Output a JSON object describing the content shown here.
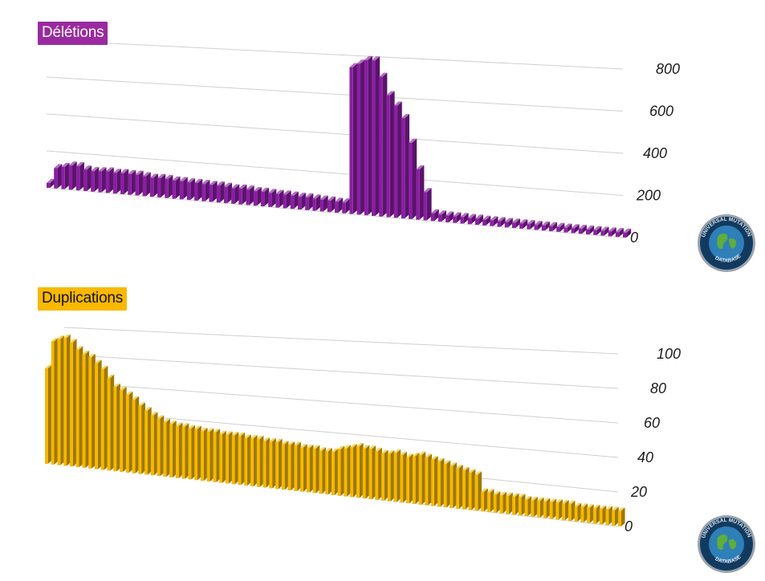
{
  "colors": {
    "deletions": "#8a1fa3",
    "deletions_badge": "#9a2aa0",
    "duplications": "#f5b800",
    "duplications_badge": "#f8b900",
    "gridline": "#cfcfcf",
    "logo_ring": "#123a5e",
    "logo_globe": "#2f7fb8"
  },
  "logo": {
    "ring_text_top": "UNIVERSAL MUTATION",
    "ring_text_bottom": "DATABASE",
    "icon": "globe-icon"
  },
  "chart_data": [
    {
      "type": "bar",
      "style": "3d",
      "title": "Délétions",
      "ylim": [
        0,
        800
      ],
      "y_ticks": [
        "0",
        "200",
        "400",
        "600",
        "800"
      ],
      "grid": true,
      "x": [
        1,
        2,
        3,
        4,
        5,
        6,
        7,
        8,
        9,
        10,
        11,
        12,
        13,
        14,
        15,
        16,
        17,
        18,
        19,
        20,
        21,
        22,
        23,
        24,
        25,
        26,
        27,
        28,
        29,
        30,
        31,
        32,
        33,
        34,
        35,
        36,
        37,
        38,
        39,
        40,
        41,
        42,
        43,
        44,
        45,
        46,
        47,
        48,
        49,
        50,
        51,
        52,
        53,
        54,
        55,
        56,
        57,
        58,
        59,
        60,
        61,
        62,
        63,
        64,
        65,
        66,
        67,
        68,
        69,
        70,
        71,
        72,
        73,
        74,
        75,
        76,
        77,
        78,
        79
      ],
      "values": [
        10,
        110,
        120,
        130,
        130,
        115,
        110,
        112,
        115,
        110,
        112,
        110,
        110,
        105,
        100,
        102,
        100,
        95,
        95,
        92,
        92,
        90,
        88,
        88,
        85,
        80,
        82,
        80,
        75,
        75,
        72,
        70,
        70,
        68,
        65,
        65,
        62,
        60,
        58,
        55,
        55,
        740,
        760,
        780,
        780,
        700,
        610,
        560,
        500,
        380,
        250,
        140,
        38,
        35,
        33,
        32,
        32,
        30,
        30,
        28,
        28,
        27,
        26,
        26,
        25,
        25,
        24,
        24,
        24,
        23,
        23,
        22,
        22,
        22,
        21,
        21,
        21,
        20,
        20
      ]
    },
    {
      "type": "bar",
      "style": "3d",
      "title": "Duplications",
      "ylim": [
        0,
        100
      ],
      "y_ticks": [
        "0",
        "20",
        "40",
        "60",
        "80",
        "100"
      ],
      "grid": true,
      "x": [
        1,
        2,
        3,
        4,
        5,
        6,
        7,
        8,
        9,
        10,
        11,
        12,
        13,
        14,
        15,
        16,
        17,
        18,
        19,
        20,
        21,
        22,
        23,
        24,
        25,
        26,
        27,
        28,
        29,
        30,
        31,
        32,
        33,
        34,
        35,
        36,
        37,
        38,
        39,
        40,
        41,
        42,
        43,
        44,
        45,
        46,
        47,
        48,
        49,
        50,
        51,
        52,
        53,
        54,
        55,
        56,
        57,
        58,
        59,
        60,
        61,
        62,
        63,
        64,
        65,
        66,
        67,
        68,
        69,
        70,
        71,
        72,
        73,
        74,
        75,
        76,
        77,
        78,
        79,
        80,
        81,
        82,
        83,
        84,
        85,
        86,
        87,
        88,
        89,
        90,
        91,
        92,
        93
      ],
      "values": [
        70,
        90,
        92,
        93,
        90,
        85,
        82,
        80,
        76,
        72,
        66,
        60,
        58,
        55,
        52,
        48,
        45,
        42,
        40,
        38,
        37,
        36,
        36,
        35,
        35,
        34,
        34,
        34,
        33,
        33,
        33,
        33,
        32,
        32,
        32,
        31,
        31,
        31,
        30,
        30,
        30,
        29,
        29,
        29,
        28,
        28,
        28,
        30,
        31,
        32,
        33,
        32,
        32,
        31,
        30,
        30,
        31,
        30,
        29,
        30,
        31,
        30,
        29,
        28,
        27,
        26,
        25,
        24,
        23,
        22,
        12,
        12,
        11,
        11,
        11,
        11,
        11,
        10,
        10,
        10,
        10,
        10,
        10,
        10,
        10,
        9,
        9,
        9,
        9,
        9,
        9,
        9,
        9
      ]
    }
  ]
}
